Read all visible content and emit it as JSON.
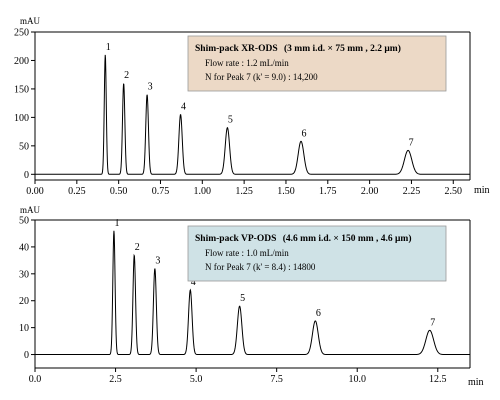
{
  "colors": {
    "box_top_fill": "#ecd9c6",
    "box_bottom_fill": "#cfe2e6",
    "trace": "#000000"
  },
  "chart_data": [
    {
      "type": "line",
      "ylabel": "mAU",
      "xunit": "min",
      "xlim": [
        0,
        2.6
      ],
      "ylim": [
        -10,
        250
      ],
      "x_ticks": [
        0,
        0.25,
        0.5,
        0.75,
        1.0,
        1.25,
        1.5,
        1.75,
        2.0,
        2.25,
        2.5
      ],
      "x_tick_labels": [
        "0.00",
        "0.25",
        "0.50",
        "0.75",
        "1.00",
        "1.25",
        "1.50",
        "1.75",
        "2.00",
        "2.25",
        "2.50"
      ],
      "y_ticks": [
        0,
        50,
        100,
        150,
        200,
        250
      ],
      "y_tick_labels": [
        "0",
        "50",
        "100",
        "150",
        "200",
        "250"
      ],
      "grid": false,
      "peaks": [
        {
          "label": "1",
          "x": 0.42,
          "height": 210,
          "width": 0.006
        },
        {
          "label": "2",
          "x": 0.53,
          "height": 160,
          "width": 0.007
        },
        {
          "label": "3",
          "x": 0.67,
          "height": 140,
          "width": 0.008
        },
        {
          "label": "4",
          "x": 0.87,
          "height": 105,
          "width": 0.01
        },
        {
          "label": "5",
          "x": 1.15,
          "height": 82,
          "width": 0.013
        },
        {
          "label": "6",
          "x": 1.59,
          "height": 58,
          "width": 0.017
        },
        {
          "label": "7",
          "x": 2.23,
          "height": 42,
          "width": 0.022
        }
      ],
      "annotation": {
        "column": "Shim-pack XR-ODS",
        "column_spec": "(3 mm i.d. × 75 mm , 2.2 μm)",
        "flow": "Flow rate : 1.2 mL/min",
        "plates": "N for Peak 7 (k' = 9.0) : 14,200"
      }
    },
    {
      "type": "line",
      "ylabel": "mAU",
      "xunit": "min",
      "xlim": [
        0,
        13.5
      ],
      "ylim": [
        -5,
        50
      ],
      "x_ticks": [
        0,
        2.5,
        5.0,
        7.5,
        10.0,
        12.5
      ],
      "x_tick_labels": [
        "0.0",
        "2.5",
        "5.0",
        "7.5",
        "10.0",
        "12.5"
      ],
      "y_ticks": [
        0,
        10,
        20,
        30,
        40,
        50
      ],
      "y_tick_labels": [
        "0",
        "10",
        "20",
        "30",
        "40",
        "50"
      ],
      "grid": false,
      "peaks": [
        {
          "label": "1",
          "x": 2.45,
          "height": 46,
          "width": 0.035
        },
        {
          "label": "2",
          "x": 3.08,
          "height": 37,
          "width": 0.04
        },
        {
          "label": "3",
          "x": 3.72,
          "height": 32,
          "width": 0.045
        },
        {
          "label": "4",
          "x": 4.82,
          "height": 24,
          "width": 0.055
        },
        {
          "label": "5",
          "x": 6.35,
          "height": 18,
          "width": 0.07
        },
        {
          "label": "6",
          "x": 8.7,
          "height": 12.5,
          "width": 0.09
        },
        {
          "label": "7",
          "x": 12.25,
          "height": 9,
          "width": 0.12
        }
      ],
      "annotation": {
        "column": "Shim-pack VP-ODS",
        "column_spec": "(4.6 mm i.d. × 150 mm , 4.6 μm)",
        "flow": "Flow rate : 1.0 mL/min",
        "plates": "N for Peak 7 (k' = 8.4) : 14800"
      }
    }
  ]
}
